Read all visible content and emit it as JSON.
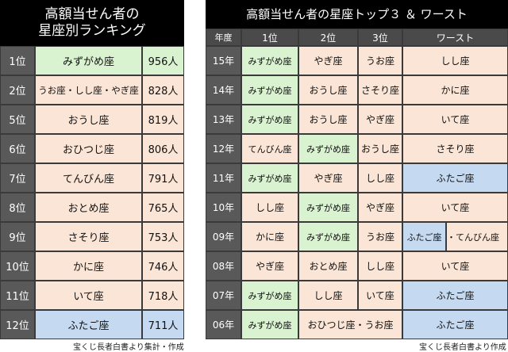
{
  "colors": {
    "header_black": "#000000",
    "rank_gray": "#595959",
    "year_header_gray": "#4a4a4a",
    "peach": "#fbe5d6",
    "green": "#d9f2d0",
    "blue": "#c5d9f1",
    "white_text": "#ffffff"
  },
  "left_table": {
    "title_line1": "高額当せん者の",
    "title_line2": "星座別ランキング",
    "rows": [
      {
        "rank": "1位",
        "sign": "みずがめ座",
        "count": "956人",
        "color": "green"
      },
      {
        "rank": "2位",
        "sign": "うお座・しし座・やぎ座",
        "count": "828人",
        "color": "peach"
      },
      {
        "rank": "5位",
        "sign": "おうし座",
        "count": "819人",
        "color": "peach"
      },
      {
        "rank": "6位",
        "sign": "おひつじ座",
        "count": "806人",
        "color": "peach"
      },
      {
        "rank": "7位",
        "sign": "てんびん座",
        "count": "791人",
        "color": "peach"
      },
      {
        "rank": "8位",
        "sign": "おとめ座",
        "count": "765人",
        "color": "peach"
      },
      {
        "rank": "9位",
        "sign": "さそり座",
        "count": "753人",
        "color": "peach"
      },
      {
        "rank": "10位",
        "sign": "かに座",
        "count": "746人",
        "color": "peach"
      },
      {
        "rank": "11位",
        "sign": "いて座",
        "count": "718人",
        "color": "peach"
      },
      {
        "rank": "12位",
        "sign": "ふたご座",
        "count": "711人",
        "color": "blue"
      }
    ],
    "footer": "宝くじ長者白書より集計・作成"
  },
  "right_table": {
    "title": "高額当せん者の星座トップ３ ＆ ワースト",
    "headers": {
      "year": "年度",
      "first": "1位",
      "second": "2位",
      "third": "3位",
      "worst": "ワースト"
    },
    "rows": [
      {
        "year": "15年",
        "cells": [
          {
            "text": "みずがめ座",
            "color": "green"
          },
          {
            "text": "やぎ座",
            "color": "peach"
          },
          {
            "text": "うお座",
            "color": "peach"
          }
        ],
        "worst": {
          "text": "しし座",
          "color": "peach"
        }
      },
      {
        "year": "14年",
        "cells": [
          {
            "text": "みずがめ座",
            "color": "green"
          },
          {
            "text": "おうし座",
            "color": "peach"
          },
          {
            "text": "さそり座",
            "color": "peach"
          }
        ],
        "worst": {
          "text": "かに座",
          "color": "peach"
        }
      },
      {
        "year": "13年",
        "cells": [
          {
            "text": "みずがめ座",
            "color": "green"
          },
          {
            "text": "おうし座",
            "color": "peach"
          },
          {
            "text": "やぎ座",
            "color": "peach"
          }
        ],
        "worst": {
          "text": "いて座",
          "color": "peach"
        }
      },
      {
        "year": "12年",
        "cells": [
          {
            "text": "てんびん座",
            "color": "peach"
          },
          {
            "text": "みずがめ座",
            "color": "green"
          },
          {
            "text": "おうし座",
            "color": "peach"
          }
        ],
        "worst": {
          "text": "さそり座",
          "color": "peach"
        }
      },
      {
        "year": "11年",
        "cells": [
          {
            "text": "みずがめ座",
            "color": "green"
          },
          {
            "text": "やぎ座",
            "color": "peach"
          },
          {
            "text": "しし座",
            "color": "peach"
          }
        ],
        "worst": {
          "text": "ふたご座",
          "color": "blue"
        }
      },
      {
        "year": "10年",
        "cells": [
          {
            "text": "しし座",
            "color": "peach"
          },
          {
            "text": "みずがめ座",
            "color": "green"
          },
          {
            "text": "やぎ座",
            "color": "peach"
          }
        ],
        "worst": {
          "text": "いて座",
          "color": "peach"
        }
      },
      {
        "year": "09年",
        "cells": [
          {
            "text": "かに座",
            "color": "peach"
          },
          {
            "text": "みずがめ座",
            "color": "green"
          },
          {
            "text": "うお座",
            "color": "peach"
          }
        ],
        "worst_split": [
          {
            "text": "ふたご座",
            "color": "blue"
          },
          {
            "text": "・てんびん座",
            "color": "peach"
          }
        ]
      },
      {
        "year": "08年",
        "cells": [
          {
            "text": "やぎ座",
            "color": "peach"
          },
          {
            "text": "おとめ座",
            "color": "peach"
          },
          {
            "text": "しし座",
            "color": "peach"
          }
        ],
        "worst": {
          "text": "いて座",
          "color": "peach"
        }
      },
      {
        "year": "07年",
        "cells": [
          {
            "text": "みずがめ座",
            "color": "green"
          },
          {
            "text": "しし座",
            "color": "peach"
          },
          {
            "text": "いて座",
            "color": "peach"
          }
        ],
        "worst": {
          "text": "ふたご座",
          "color": "blue"
        }
      },
      {
        "year": "06年",
        "cells": [
          {
            "text": "みずがめ座",
            "color": "green"
          }
        ],
        "merged": {
          "text": "おひつじ座・うお座",
          "color": "peach"
        },
        "worst": {
          "text": "ふたご座",
          "color": "blue"
        }
      }
    ],
    "footer": "宝くじ長者白書より作成"
  }
}
